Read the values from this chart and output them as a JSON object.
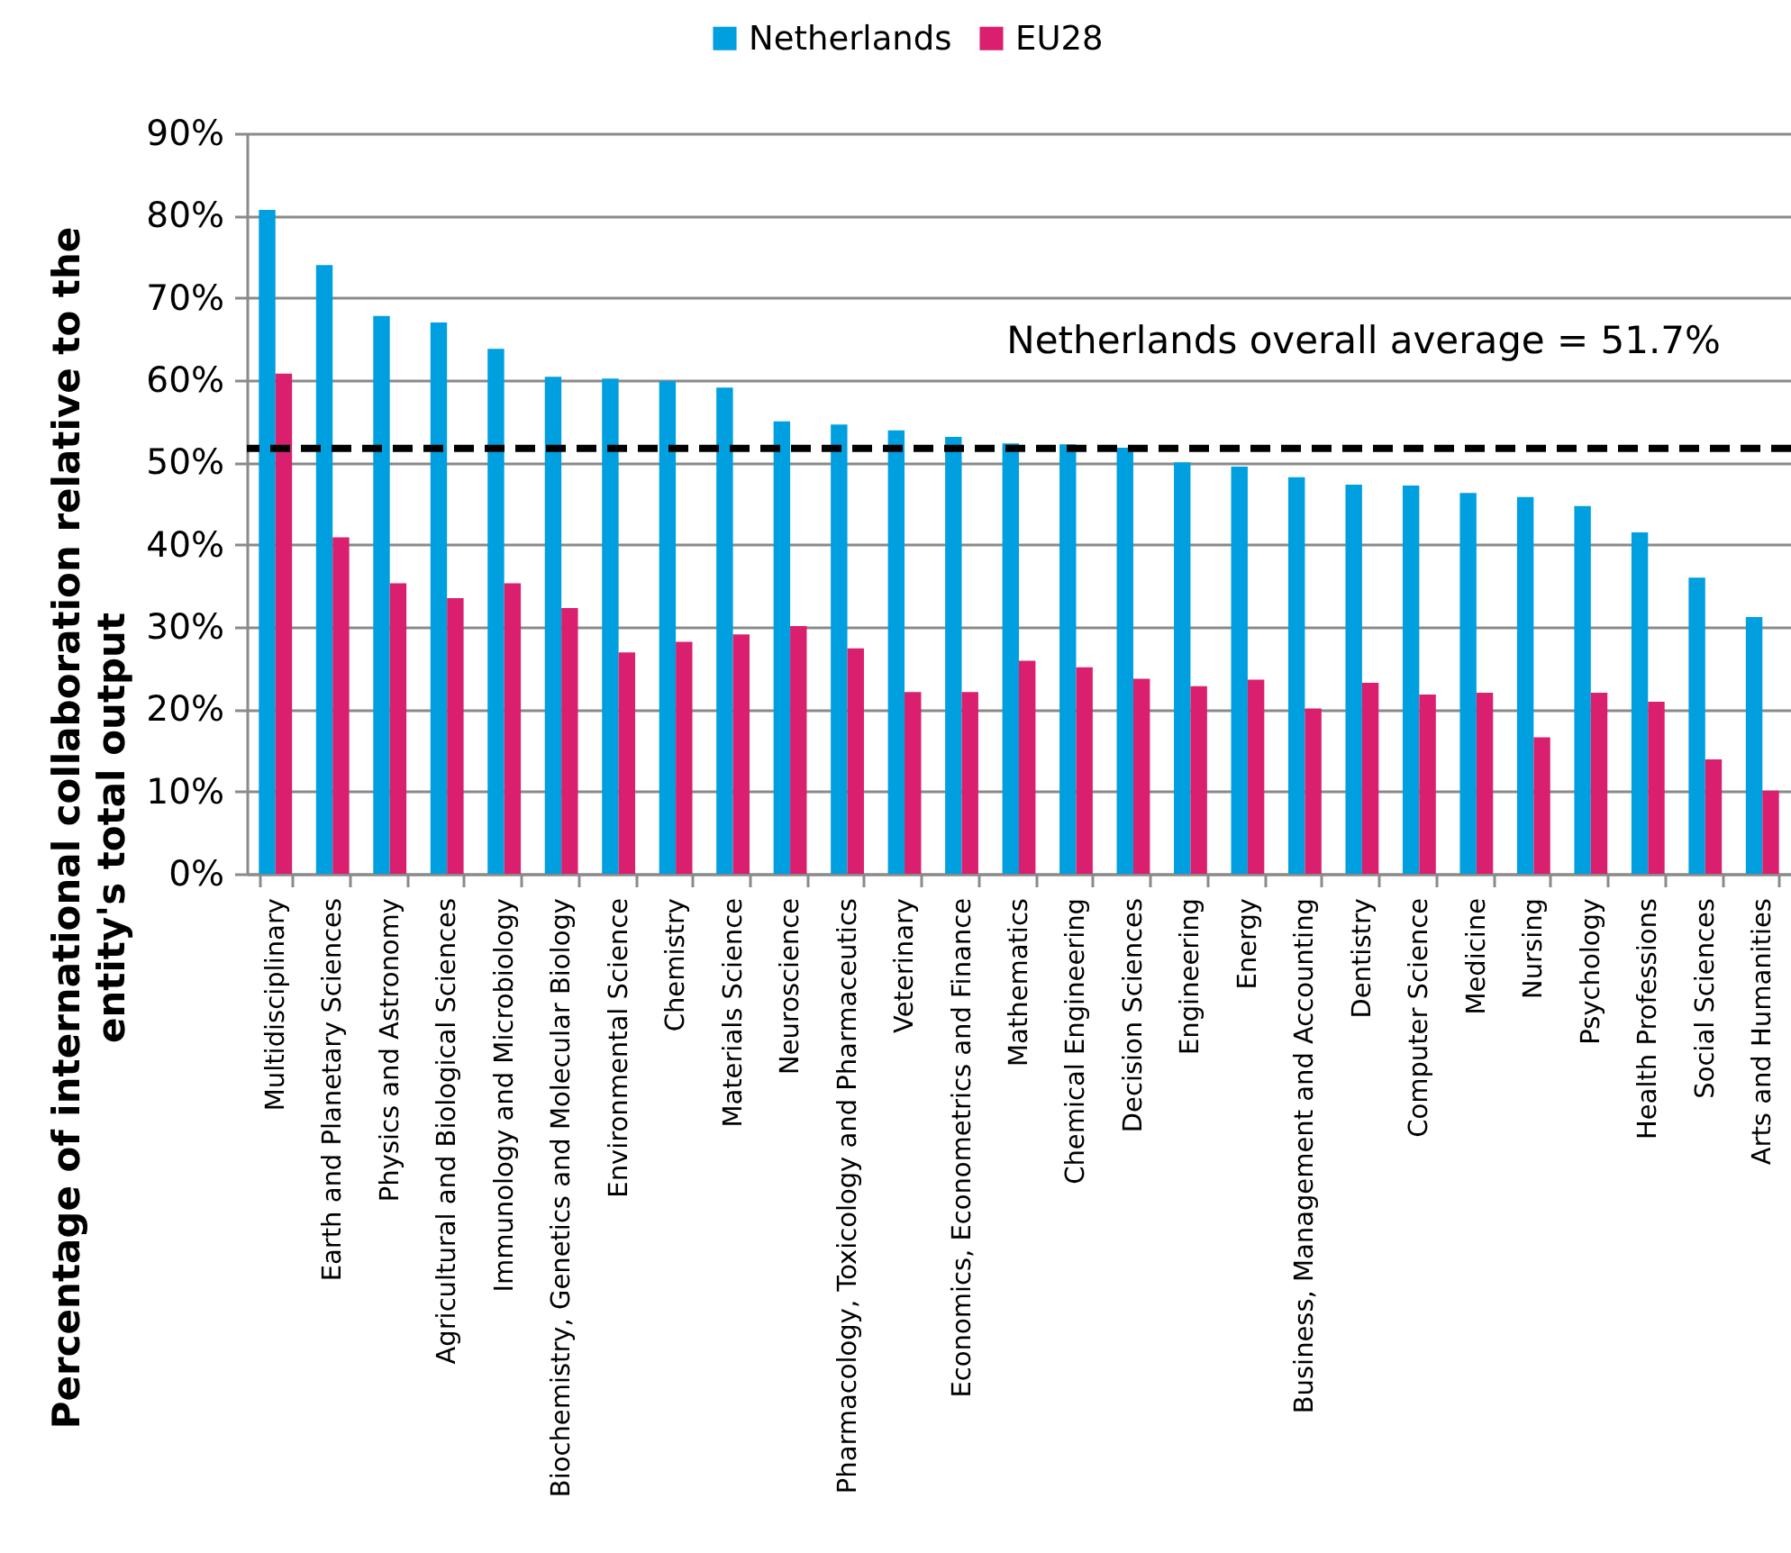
{
  "chart_data": {
    "type": "bar",
    "ylabel": "Percentage of international collaboration relative to the entity's total output",
    "categories": [
      "Multidisciplinary",
      "Earth and Planetary Sciences",
      "Physics and Astronomy",
      "Agricultural and Biological Sciences",
      "Immunology and Microbiology",
      "Biochemistry, Genetics and Molecular Biology",
      "Environmental Science",
      "Chemistry",
      "Materials Science",
      "Neuroscience",
      "Pharmacology, Toxicology and Pharmaceutics",
      "Veterinary",
      "Economics, Econometrics and Finance",
      "Mathematics",
      "Chemical Engineering",
      "Decision Sciences",
      "Engineering",
      "Energy",
      "Business, Management and Accounting",
      "Dentistry",
      "Computer Science",
      "Medicine",
      "Nursing",
      "Psychology",
      "Health Professions",
      "Social Sciences",
      "Arts and Humanities"
    ],
    "series": [
      {
        "name": "Netherlands",
        "color": "#009fdf",
        "values": [
          80.7,
          74.0,
          67.8,
          67.0,
          63.8,
          60.4,
          60.2,
          59.9,
          59.1,
          55.0,
          54.6,
          53.9,
          53.1,
          52.3,
          52.2,
          51.8,
          50.0,
          49.5,
          48.2,
          47.3,
          47.2,
          46.3,
          45.8,
          44.7,
          41.5,
          36.0,
          31.2
        ]
      },
      {
        "name": "EU28",
        "color": "#da1f6f",
        "values": [
          60.8,
          40.9,
          35.3,
          33.5,
          35.3,
          32.3,
          26.9,
          28.2,
          29.1,
          30.1,
          27.4,
          22.1,
          22.1,
          25.9,
          25.1,
          23.7,
          22.8,
          23.6,
          20.1,
          23.2,
          21.8,
          22.0,
          16.6,
          22.0,
          20.9,
          13.9,
          10.1
        ]
      }
    ],
    "ylim": [
      0,
      90
    ],
    "yticks": [
      {
        "value": 0,
        "label": "0%"
      },
      {
        "value": 10,
        "label": "10%"
      },
      {
        "value": 20,
        "label": "20%"
      },
      {
        "value": 30,
        "label": "30%"
      },
      {
        "value": 40,
        "label": "40%"
      },
      {
        "value": 50,
        "label": "50%"
      },
      {
        "value": 60,
        "label": "60%"
      },
      {
        "value": 70,
        "label": "70%"
      },
      {
        "value": 80,
        "label": "80%"
      },
      {
        "value": 90,
        "label": "90%"
      }
    ],
    "grid": "y",
    "legend": "top",
    "ref_lines": [
      {
        "axis": "y",
        "value": 51.7,
        "label": "Netherlands overall average = 51.7%",
        "color": "#000000",
        "line_style": "dashed"
      }
    ]
  }
}
